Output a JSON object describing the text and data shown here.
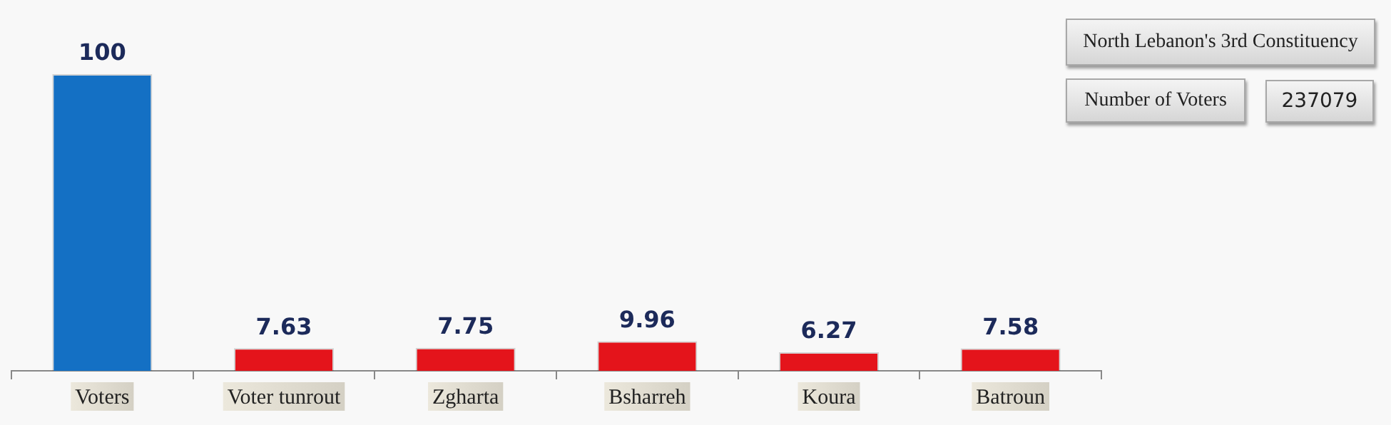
{
  "chart_data": {
    "type": "bar",
    "categories": [
      "Voters",
      "Voter tunrout",
      "Zgharta",
      "Bsharreh",
      "Koura",
      "Batroun"
    ],
    "values": [
      100,
      7.63,
      7.75,
      9.96,
      6.27,
      7.58
    ],
    "colors": [
      "#1470c4",
      "#e4141b",
      "#e4141b",
      "#e4141b",
      "#e4141b",
      "#e4141b"
    ],
    "data_labels": true,
    "tick_labels": "x",
    "grid": false,
    "legend": false,
    "annotations": [
      "North Lebanon's 3rd Constituency",
      "Number of Voters",
      "237079"
    ]
  }
}
